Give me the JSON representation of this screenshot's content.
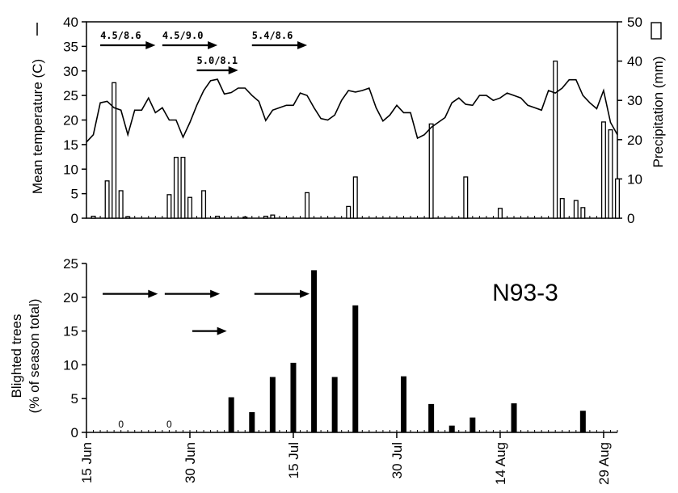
{
  "chart_data": [
    {
      "type": "bar",
      "panel": "top",
      "ylabel_left": "Mean temperature (C)",
      "ylabel_right": "Precipitation (mm)",
      "ylim_left": [
        0,
        40
      ],
      "ylim_right": [
        0,
        50
      ],
      "yticks_left": [
        "0",
        "5",
        "10",
        "15",
        "20",
        "25",
        "30",
        "35",
        "40"
      ],
      "yticks_right": [
        "0",
        "10",
        "20",
        "30",
        "40",
        "50"
      ],
      "x_range_days": [
        0,
        77
      ],
      "temperature_series": {
        "day": [
          0,
          1,
          2,
          3,
          4,
          5,
          6,
          7,
          8,
          9,
          10,
          11,
          12,
          13,
          14,
          15,
          16,
          17,
          18,
          19,
          20,
          21,
          22,
          23,
          24,
          25,
          26,
          27,
          28,
          29,
          30,
          31,
          32,
          33,
          34,
          35,
          36,
          37,
          38,
          39,
          40,
          41,
          42,
          43,
          44,
          45,
          46,
          47,
          48,
          49,
          50,
          51,
          52,
          53,
          54,
          55,
          56,
          57,
          58,
          59,
          60,
          61,
          62,
          63,
          64,
          65,
          66,
          67,
          68,
          69,
          70,
          71,
          72,
          73,
          74,
          75,
          76,
          77
        ],
        "value": [
          15.5,
          17,
          23.5,
          23.8,
          22.5,
          22,
          17,
          22,
          22,
          24.5,
          21.5,
          22.5,
          20,
          20,
          16.5,
          19.5,
          23,
          26,
          28,
          28.3,
          25.3,
          25.6,
          26.5,
          26.5,
          25,
          23.8,
          19.9,
          22,
          22.5,
          23,
          23,
          25.5,
          25,
          22.5,
          20.3,
          20,
          21,
          24,
          26,
          25.7,
          26,
          26.5,
          22.5,
          19.8,
          21,
          23,
          21.5,
          21.5,
          16.3,
          17,
          18.5,
          19.5,
          20.5,
          23.5,
          24.5,
          23.2,
          23,
          25,
          25,
          24,
          24.5,
          25.5,
          25,
          24.5,
          23,
          22.5,
          22,
          26,
          25.5,
          26.5,
          28.2,
          28.2,
          25,
          23.5,
          22.3,
          26,
          19.5,
          17
        ]
      },
      "precipitation_series": {
        "day": [
          1,
          2,
          3,
          4,
          5,
          6,
          7,
          8,
          9,
          10,
          11,
          12,
          13,
          14,
          15,
          16,
          17,
          18,
          19,
          20,
          21,
          22,
          23,
          24,
          25,
          26,
          27,
          28,
          29,
          30,
          31,
          32,
          33,
          34,
          35,
          36,
          37,
          38,
          39,
          40,
          41,
          42,
          43,
          44,
          45,
          46,
          47,
          48,
          49,
          50,
          51,
          52,
          53,
          54,
          55,
          56,
          57,
          58,
          59,
          60,
          61,
          62,
          63,
          64,
          65,
          66,
          67,
          68,
          69,
          70,
          71,
          72,
          73,
          74,
          75,
          76,
          77
        ],
        "value": [
          0.5,
          0,
          9.5,
          34.5,
          7,
          0.4,
          0,
          0,
          0,
          0,
          0,
          6,
          15.5,
          15.5,
          5.3,
          0,
          7,
          0,
          0.5,
          0,
          0,
          0,
          0.3,
          0,
          0,
          0.5,
          0.8,
          0,
          0,
          0,
          0,
          6.5,
          0,
          0,
          0,
          0,
          0,
          3,
          10.5,
          0,
          0,
          0,
          0,
          0,
          0,
          0,
          0,
          0,
          0,
          24,
          0,
          0,
          0,
          0,
          10.5,
          0,
          0,
          0,
          0,
          2.5,
          0,
          0,
          0,
          0,
          0,
          0,
          0,
          40,
          5,
          0,
          4.5,
          2.7,
          0,
          0,
          24.5,
          22.5,
          10
        ]
      },
      "annotations": [
        {
          "text": "4.5/8.6",
          "from_day": 2,
          "to_day": 10,
          "row": 1
        },
        {
          "text": "4.5/9.0",
          "from_day": 11,
          "to_day": 19,
          "row": 1
        },
        {
          "text": "5.4/8.6",
          "from_day": 24,
          "to_day": 32,
          "row": 1
        },
        {
          "text": "5.0/8.1",
          "from_day": 16,
          "to_day": 22,
          "row": 2
        }
      ]
    },
    {
      "type": "bar",
      "panel": "bottom",
      "label": "N93-3",
      "ylabel_lines": [
        "Blighted trees",
        "(% of season total)"
      ],
      "ylim": [
        0,
        25
      ],
      "yticks": [
        "0",
        "5",
        "10",
        "15",
        "20",
        "25"
      ],
      "x_range_days": [
        0,
        77
      ],
      "bars": {
        "day": [
          21,
          24,
          27,
          30,
          33,
          36,
          39,
          46,
          50,
          53,
          56,
          59,
          62,
          67,
          72
        ],
        "value": [
          5.2,
          3,
          8.2,
          10.3,
          24,
          8.2,
          18.8,
          8.3,
          4.2,
          1,
          2.2,
          0,
          4.3,
          0,
          3.2
        ]
      },
      "zero_labels": [
        {
          "text": "0",
          "day": 5
        },
        {
          "text": "0",
          "day": 12
        }
      ],
      "arrows": [
        {
          "from_day": 2,
          "to_day": 10,
          "level": 20.5
        },
        {
          "from_day": 11,
          "to_day": 19,
          "level": 20.5
        },
        {
          "from_day": 24,
          "to_day": 32,
          "level": 20.5
        },
        {
          "from_day": 15,
          "to_day": 20,
          "level": 15
        }
      ],
      "xticks": [
        {
          "label": "15 Jun",
          "day": 0
        },
        {
          "label": "30 Jun",
          "day": 15
        },
        {
          "label": "15 Jul",
          "day": 30
        },
        {
          "label": "30 Jul",
          "day": 45
        },
        {
          "label": "14 Aug",
          "day": 60
        },
        {
          "label": "29 Aug",
          "day": 75
        }
      ]
    }
  ]
}
